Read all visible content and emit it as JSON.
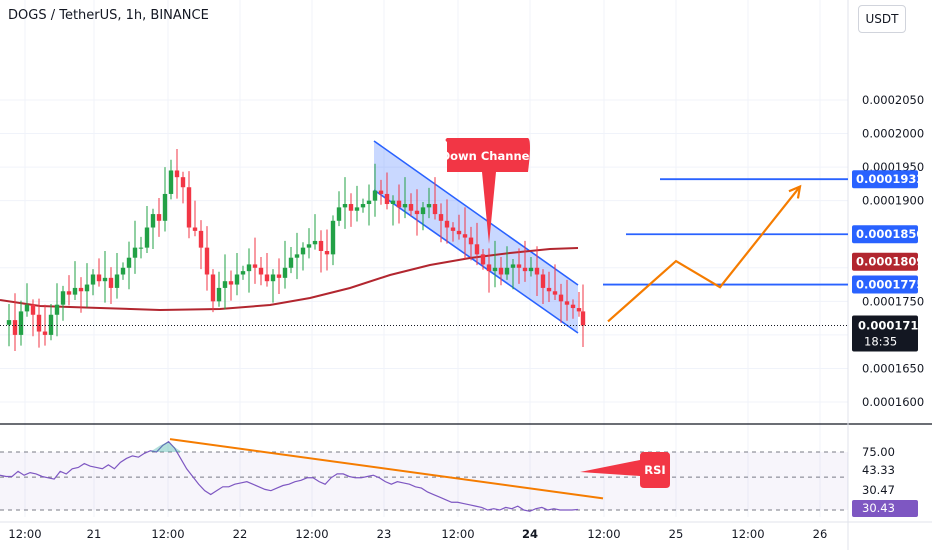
{
  "header": {
    "title": "DOGS / TetherUS, 1h, BINANCE",
    "unit_button": "USDT"
  },
  "colors": {
    "up": "#26a69a",
    "up_bar": "#22a146",
    "down": "#f23645",
    "ma": "#b2262f",
    "channel": "#2962ff",
    "projection": "#f57c00",
    "rsi": "#7e57c2",
    "level": "#2962ff"
  },
  "chart_data": [
    {
      "type": "candlestick",
      "title": "DOGS / TetherUS, 1h, BINANCE",
      "ylim": [
        0.0001582,
        0.0002075
      ],
      "y_ticks": [
        "0.0002050",
        "0.0002000",
        "0.0001950",
        "0.0001900",
        "0.0001750",
        "0.0001650",
        "0.0001600"
      ],
      "x_ticks": [
        "12:00",
        "21",
        "12:00",
        "22",
        "12:00",
        "23",
        "12:00",
        "24",
        "12:00",
        "25",
        "12:00",
        "26"
      ],
      "candles_close_path": [
        [
          0,
          0.0001715
        ],
        [
          6,
          0.0001722
        ],
        [
          12,
          0.00017
        ],
        [
          18,
          0.0001735
        ],
        [
          24,
          0.0001745
        ],
        [
          30,
          0.000173
        ],
        [
          36,
          0.0001705
        ],
        [
          42,
          0.00017
        ],
        [
          48,
          0.000173
        ],
        [
          54,
          0.0001745
        ],
        [
          60,
          0.0001765
        ],
        [
          66,
          0.000176
        ],
        [
          72,
          0.000177
        ],
        [
          78,
          0.0001765
        ],
        [
          84,
          0.0001775
        ],
        [
          90,
          0.000179
        ],
        [
          96,
          0.000178
        ],
        [
          102,
          0.0001785
        ],
        [
          108,
          0.000177
        ],
        [
          114,
          0.000179
        ],
        [
          120,
          0.00018
        ],
        [
          126,
          0.0001815
        ],
        [
          132,
          0.000183
        ],
        [
          138,
          0.000183
        ],
        [
          144,
          0.000186
        ],
        [
          150,
          0.000188
        ],
        [
          156,
          0.000187
        ],
        [
          162,
          0.000191
        ],
        [
          168,
          0.0001945
        ],
        [
          174,
          0.0001935
        ],
        [
          180,
          0.000192
        ],
        [
          186,
          0.000186
        ],
        [
          192,
          0.0001855
        ],
        [
          198,
          0.000183
        ],
        [
          204,
          0.000179
        ],
        [
          210,
          0.000175
        ],
        [
          216,
          0.000177
        ],
        [
          222,
          0.000178
        ],
        [
          228,
          0.0001775
        ],
        [
          234,
          0.000179
        ],
        [
          240,
          0.0001795
        ],
        [
          246,
          0.0001805
        ],
        [
          252,
          0.00018
        ],
        [
          258,
          0.000179
        ],
        [
          264,
          0.000178
        ],
        [
          270,
          0.000179
        ],
        [
          276,
          0.0001785
        ],
        [
          282,
          0.00018
        ],
        [
          288,
          0.0001815
        ],
        [
          294,
          0.000182
        ],
        [
          300,
          0.000183
        ],
        [
          306,
          0.0001835
        ],
        [
          312,
          0.000184
        ],
        [
          318,
          0.0001825
        ],
        [
          324,
          0.000182
        ],
        [
          330,
          0.000187
        ],
        [
          336,
          0.000189
        ],
        [
          342,
          0.0001895
        ],
        [
          348,
          0.0001885
        ],
        [
          354,
          0.000189
        ],
        [
          360,
          0.0001895
        ],
        [
          366,
          0.00019
        ],
        [
          372,
          0.0001915
        ],
        [
          378,
          0.000191
        ],
        [
          384,
          0.0001895
        ],
        [
          390,
          0.00019
        ],
        [
          396,
          0.000189
        ],
        [
          402,
          0.0001895
        ],
        [
          408,
          0.0001885
        ],
        [
          414,
          0.000188
        ],
        [
          420,
          0.000189
        ],
        [
          426,
          0.0001895
        ],
        [
          432,
          0.000188
        ],
        [
          438,
          0.000187
        ],
        [
          444,
          0.000186
        ],
        [
          450,
          0.0001855
        ],
        [
          456,
          0.000185
        ],
        [
          462,
          0.0001845
        ],
        [
          468,
          0.0001835
        ],
        [
          474,
          0.000182
        ],
        [
          480,
          0.0001805
        ],
        [
          486,
          0.0001795
        ],
        [
          492,
          0.00018
        ],
        [
          498,
          0.000179
        ],
        [
          504,
          0.00018
        ],
        [
          510,
          0.0001805
        ],
        [
          516,
          0.00018
        ],
        [
          522,
          0.0001795
        ],
        [
          528,
          0.00018
        ],
        [
          534,
          0.000179
        ],
        [
          540,
          0.000177
        ],
        [
          546,
          0.0001765
        ],
        [
          552,
          0.000176
        ],
        [
          558,
          0.000175
        ],
        [
          564,
          0.0001745
        ],
        [
          570,
          0.000174
        ],
        [
          576,
          0.0001735
        ],
        [
          580,
          0.0001714
        ]
      ],
      "moving_average_shape": "flat near 0.000172 through 21–22, rising from 23 to about 0.000181 at 24",
      "levels": [
        {
          "price": 0.0001932,
          "label": "0.0001932"
        },
        {
          "price": 0.000185,
          "label": "0.0001850"
        },
        {
          "price": 0.0001775,
          "label": "0.0001775"
        }
      ],
      "ma_value": {
        "price": 0.0001809,
        "label": "0.0001809"
      },
      "last_price": {
        "price": 0.0001714,
        "label": "0.0001714",
        "countdown": "18:35"
      },
      "annotations": [
        {
          "text": "Down Channel",
          "kind": "callout"
        }
      ],
      "projection_path": [
        [
          608,
          0.000172
        ],
        [
          676,
          0.000181
        ],
        [
          720,
          0.0001771
        ],
        [
          800,
          0.0001921
        ]
      ]
    },
    {
      "type": "line",
      "title": "RSI",
      "ylim": [
        20,
        88
      ],
      "y_ticks": [
        "75.00",
        "43.33",
        "30.47"
      ],
      "current_value": "30.43",
      "guide_lines": [
        75,
        55.5,
        30
      ],
      "values": [
        57,
        56,
        56,
        60,
        57,
        59,
        58,
        56,
        55,
        54,
        60,
        58,
        62,
        63,
        66,
        64,
        63,
        62,
        65,
        62,
        67,
        70,
        72,
        71,
        74,
        76,
        75,
        80,
        83,
        78,
        70,
        62,
        56,
        50,
        45,
        42,
        45,
        48,
        48,
        50,
        51,
        52,
        50,
        48,
        46,
        45,
        47,
        49,
        50,
        52,
        53,
        55,
        55,
        52,
        50,
        55,
        58,
        58,
        56,
        55,
        55,
        56,
        57,
        55,
        52,
        50,
        52,
        51,
        50,
        48,
        47,
        44,
        42,
        40,
        38,
        36,
        36,
        35,
        34,
        33,
        32,
        30,
        31,
        30,
        32,
        31,
        33,
        30,
        29,
        31,
        32,
        30,
        31,
        30,
        30,
        30,
        30.43
      ],
      "annotations": [
        {
          "text": "RSI",
          "kind": "callout"
        }
      ],
      "trendline": [
        [
          170,
          85
        ],
        [
          603,
          39
        ]
      ]
    }
  ]
}
